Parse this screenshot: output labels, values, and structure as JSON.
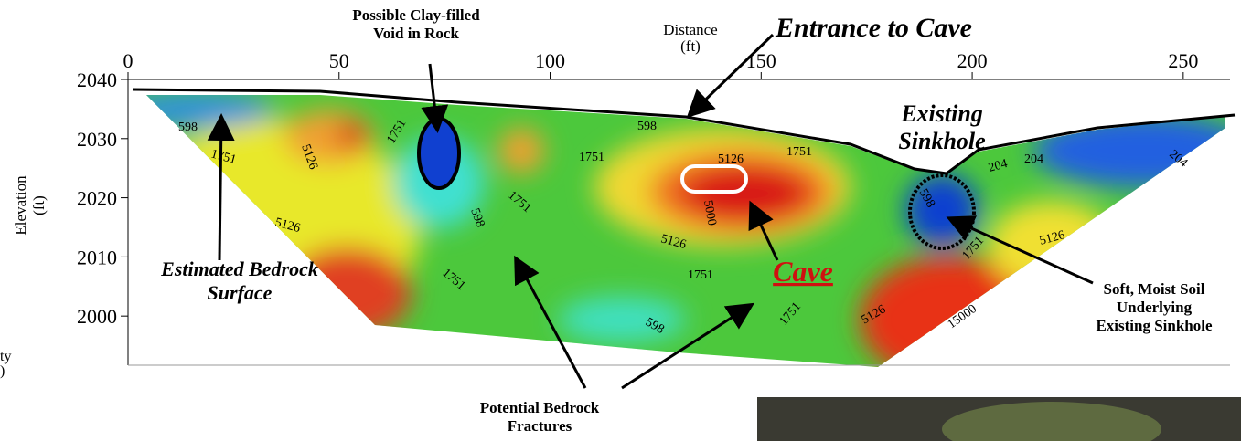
{
  "chart_data": {
    "type": "contour",
    "x_label": [
      "Distance",
      "(ft)"
    ],
    "y_label": [
      "Elevation",
      "(ft)"
    ],
    "edge_label": [
      "ty",
      ")"
    ],
    "xlim": [
      0,
      260
    ],
    "xticks": [
      0,
      50,
      100,
      150,
      200,
      250
    ],
    "ylim": [
      1992,
      2040
    ],
    "yticks": [
      2000,
      2010,
      2020,
      2030,
      2040
    ],
    "contour_labels": [
      598,
      1751,
      5126,
      1751,
      598,
      1751,
      5126,
      1751,
      1751,
      598,
      5126,
      5000,
      5126,
      1751,
      1751,
      598,
      1751,
      5126,
      15000,
      5126,
      1751,
      598,
      204,
      204,
      204
    ],
    "annotations": {
      "entrance": [
        "Entrance to Cave"
      ],
      "void": [
        "Possible Clay-filled",
        "Void in Rock"
      ],
      "sinkhole": [
        "Existing",
        "Sinkhole"
      ],
      "bedrock": [
        "Estimated Bedrock",
        "Surface"
      ],
      "cave": [
        "Cave"
      ],
      "fractures": [
        "Potential Bedrock",
        "Fractures"
      ],
      "soil": [
        "Soft, Moist Soil",
        "Underlying",
        "Existing Sinkhole"
      ]
    }
  }
}
